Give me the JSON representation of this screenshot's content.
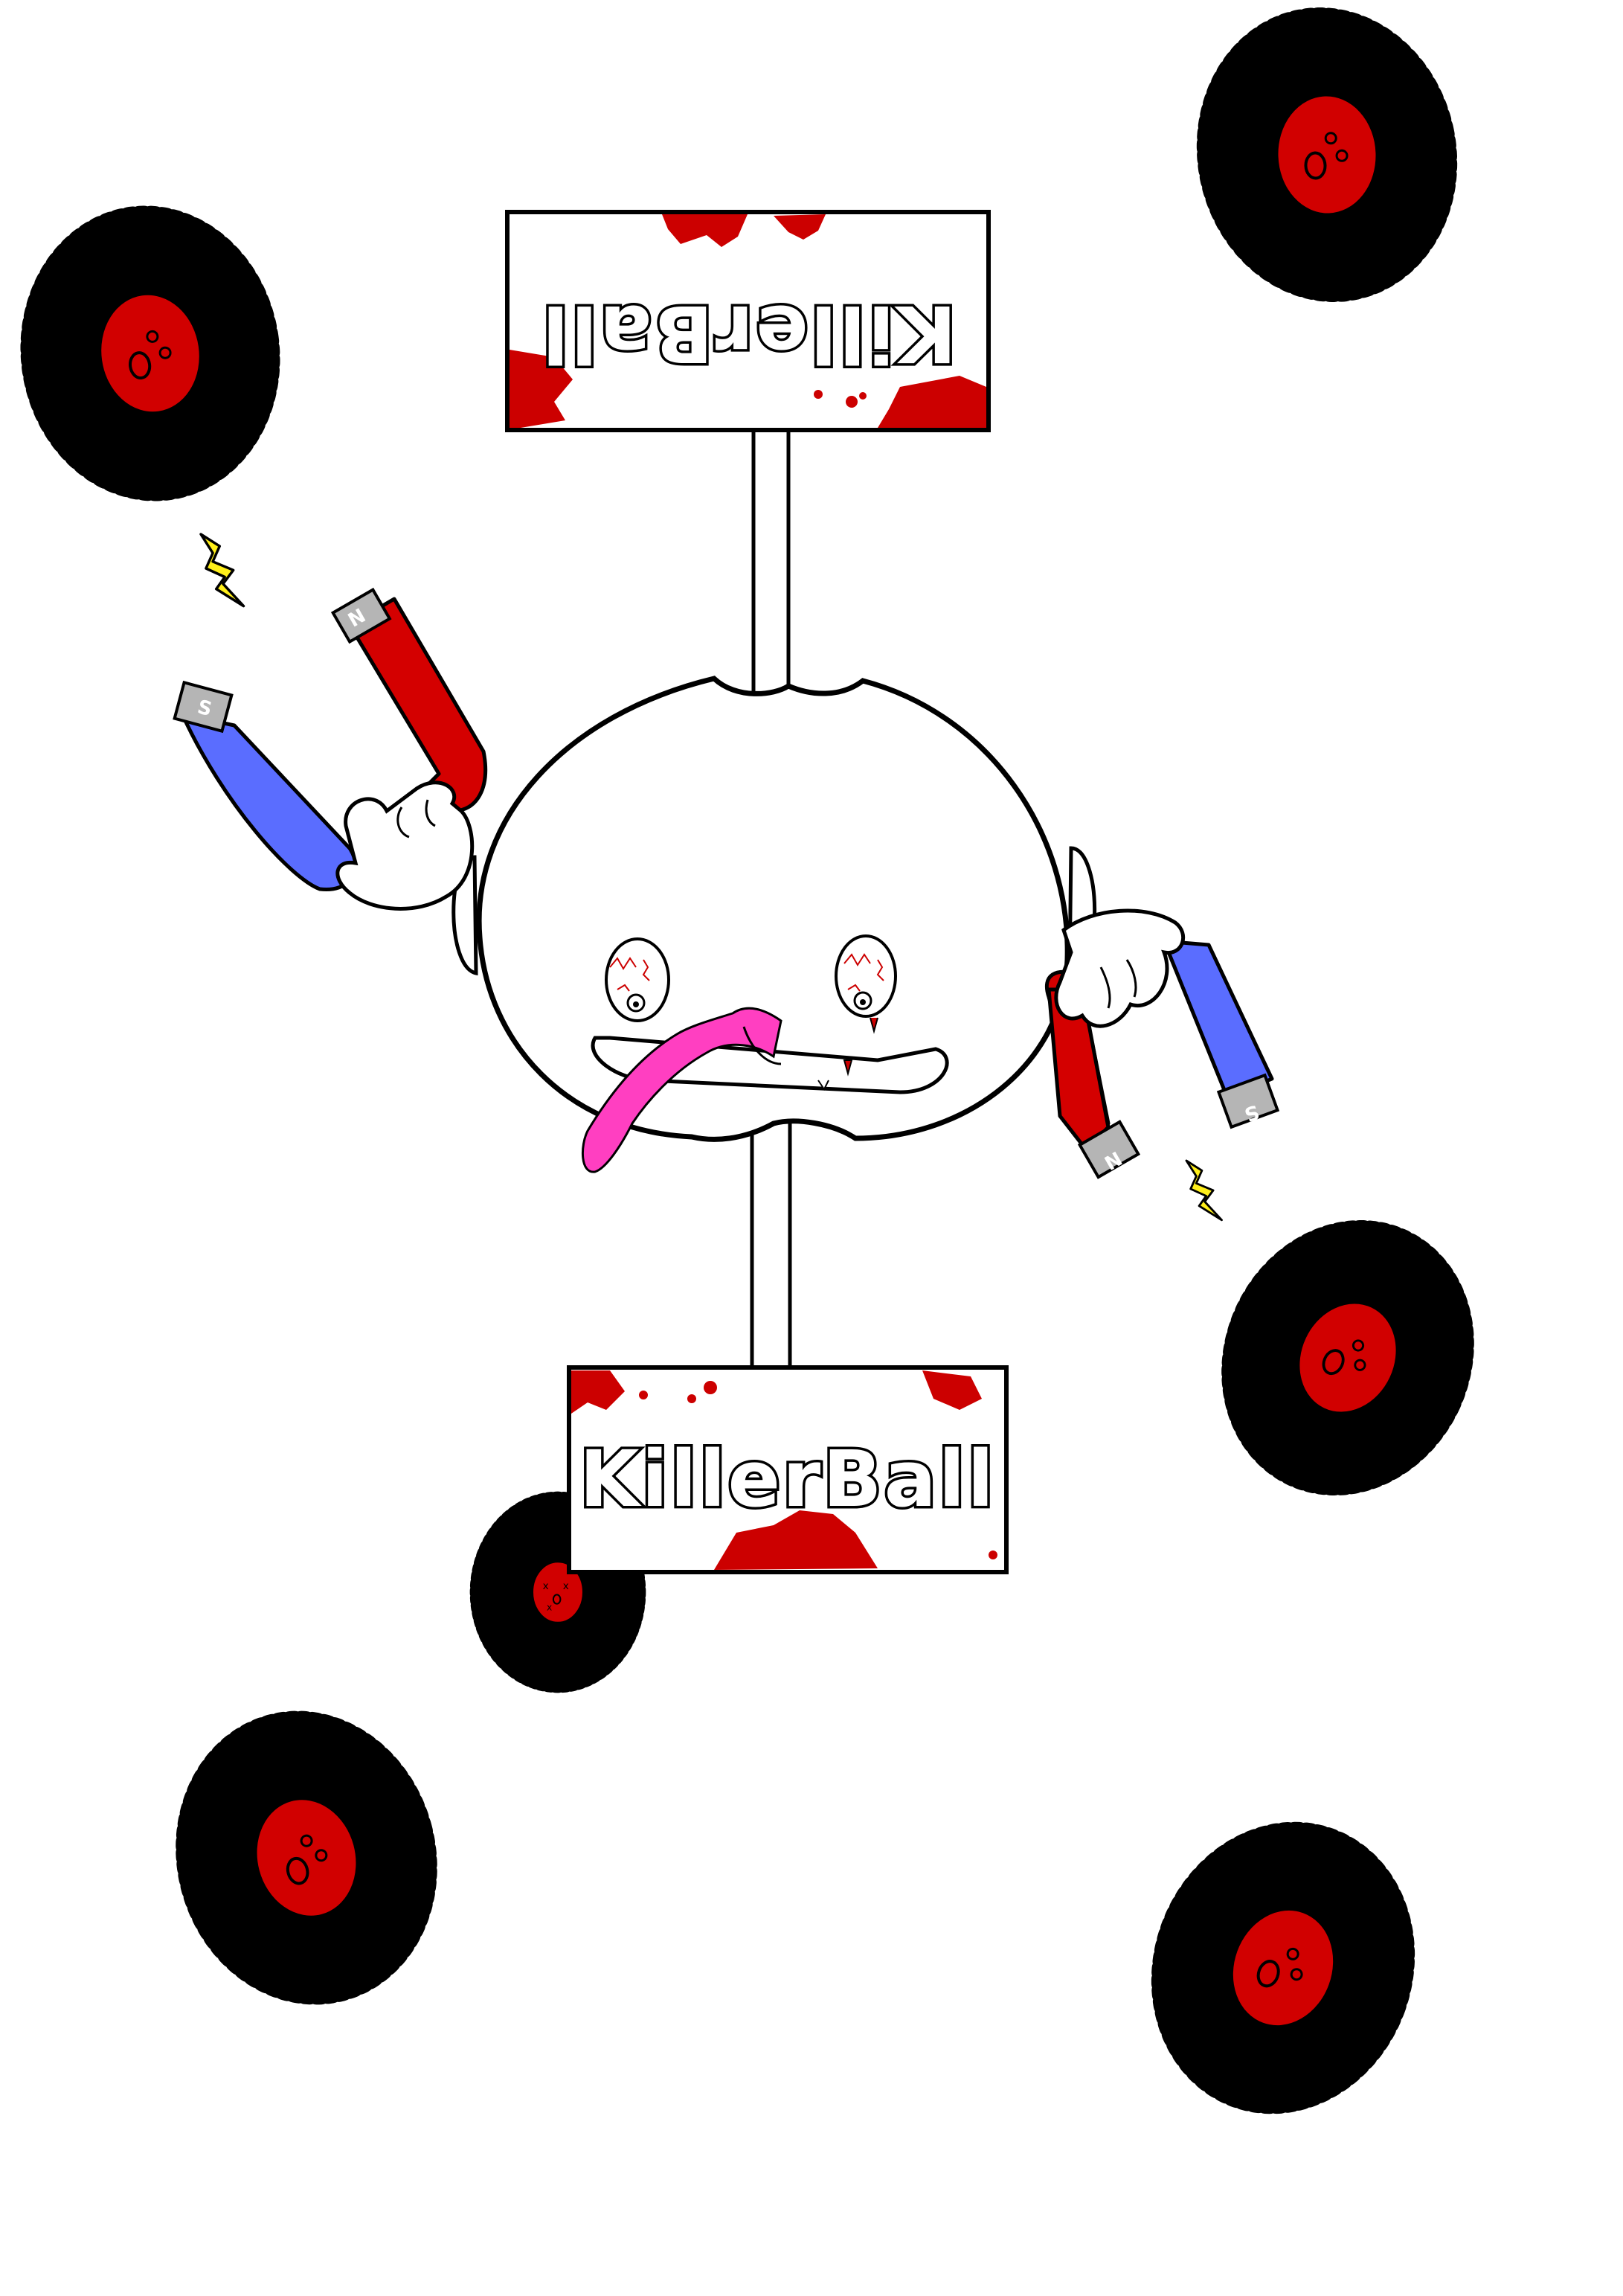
{
  "sign_top": {
    "text": "KillerBall",
    "orientation": "upside-down"
  },
  "sign_bottom": {
    "text": "KillerBall"
  },
  "magnet_left": {
    "pole_1": "N",
    "pole_2": "S"
  },
  "magnet_right": {
    "pole_1": "N",
    "pole_2": "S"
  },
  "colors": {
    "background": "#ffffff",
    "outline": "#000000",
    "blood": "#cc0000",
    "tire": "#000000",
    "hub": "#d10000",
    "magnet_red": "#d40000",
    "magnet_blue": "#5a6dff",
    "magnet_tip": "#b5b5b5",
    "tongue": "#ff3fc1",
    "spark": "#ffef1a"
  }
}
